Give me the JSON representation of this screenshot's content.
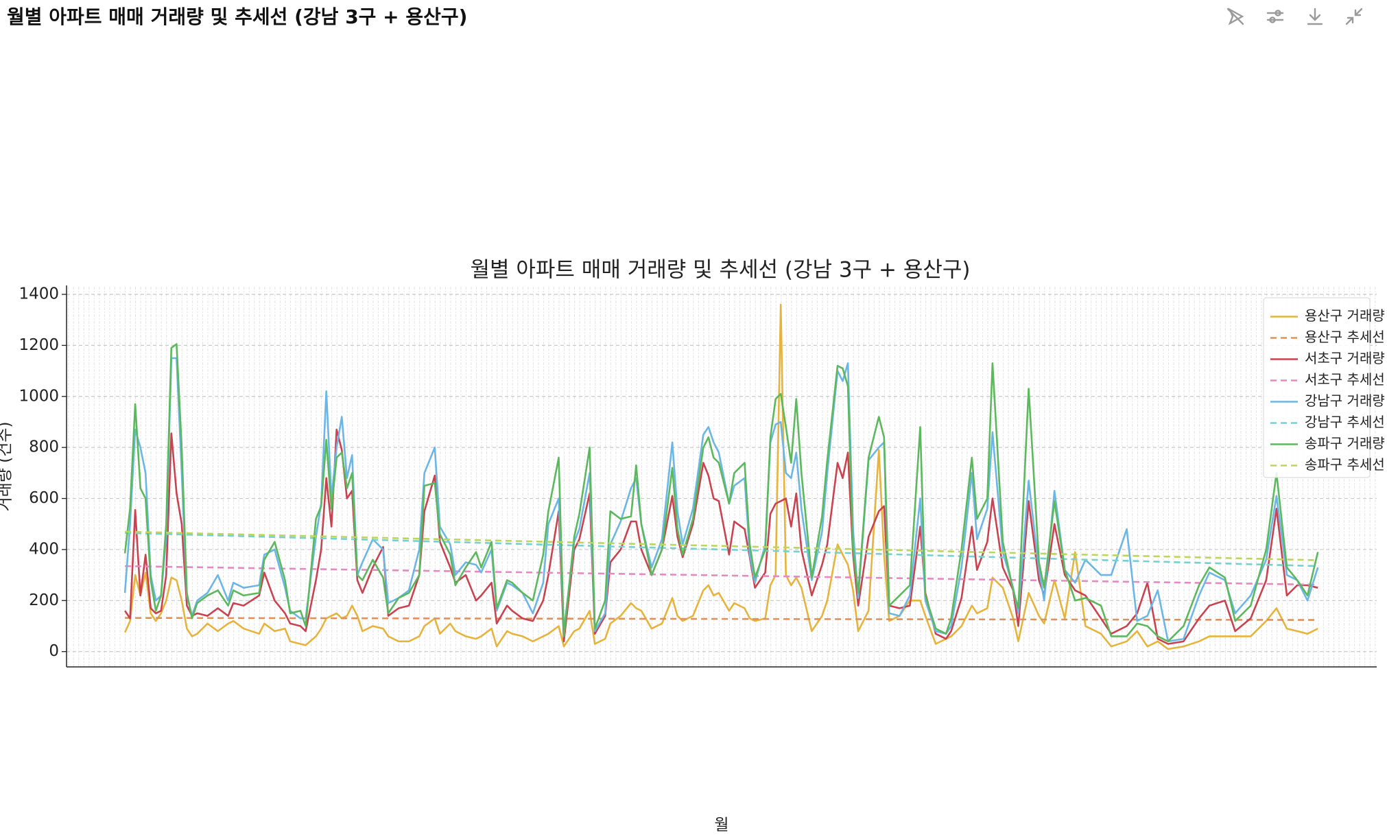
{
  "header": {
    "title": "월별 아파트 매매 거래량 및 추세선 (강남 3구 + 용산구)"
  },
  "chart_data": {
    "type": "line",
    "title": "월별 아파트 매매 거래량 및 추세선 (강남 3구 + 용산구)",
    "x_label": "월",
    "y_label": "거래량 (건수)",
    "xlim": [
      -11.3,
      242.4
    ],
    "ylim": [
      -60,
      1435
    ],
    "yticks": [
      0,
      200,
      400,
      600,
      800,
      1000,
      1200,
      1400
    ],
    "grid": true,
    "legend": "upper right",
    "x": [
      0,
      1,
      2,
      3,
      4,
      5,
      6,
      7,
      8,
      9,
      10,
      11,
      12,
      13,
      14,
      16,
      18,
      20,
      21,
      23,
      26,
      27,
      29,
      31,
      32,
      34,
      35,
      37,
      38,
      39,
      40,
      41,
      42,
      43,
      44,
      45,
      46,
      48,
      50,
      51,
      53,
      55,
      57,
      58,
      60,
      61,
      63,
      64,
      66,
      68,
      69,
      71,
      72,
      74,
      75,
      77,
      79,
      81,
      82,
      84,
      85,
      87,
      88,
      90,
      91,
      93,
      94,
      96,
      98,
      99,
      100,
      102,
      104,
      106,
      107,
      108,
      110,
      112,
      113,
      114,
      115,
      117,
      118,
      120,
      121,
      122,
      124,
      125,
      126,
      127,
      128,
      129,
      130,
      131,
      133,
      135,
      136,
      138,
      139,
      140,
      141,
      142,
      144,
      146,
      147,
      148,
      150,
      152,
      154,
      155,
      157,
      159,
      160,
      162,
      164,
      165,
      167,
      168,
      170,
      172,
      173,
      175,
      177,
      178,
      180,
      182,
      184,
      186,
      189,
      191,
      194,
      196,
      198,
      200,
      202,
      205,
      208,
      210,
      213,
      215,
      218,
      221,
      223,
      225,
      227,
      229,
      231
    ],
    "series": [
      {
        "name": "용산구 거래량",
        "color": "#e6b43c",
        "style": "solid",
        "values": [
          75,
          120,
          300,
          220,
          310,
          150,
          120,
          150,
          200,
          290,
          280,
          200,
          90,
          60,
          70,
          110,
          80,
          110,
          120,
          90,
          70,
          110,
          80,
          90,
          40,
          30,
          25,
          60,
          90,
          130,
          140,
          150,
          130,
          140,
          180,
          140,
          80,
          100,
          90,
          60,
          40,
          40,
          60,
          100,
          130,
          70,
          110,
          80,
          60,
          50,
          60,
          90,
          20,
          80,
          70,
          60,
          40,
          60,
          70,
          100,
          20,
          80,
          90,
          160,
          30,
          50,
          110,
          140,
          190,
          170,
          160,
          90,
          110,
          210,
          140,
          120,
          140,
          240,
          260,
          220,
          230,
          160,
          190,
          170,
          130,
          120,
          130,
          260,
          300,
          1360,
          300,
          260,
          290,
          250,
          80,
          140,
          200,
          420,
          380,
          340,
          240,
          80,
          160,
          790,
          380,
          120,
          140,
          200,
          200,
          140,
          30,
          50,
          60,
          100,
          180,
          150,
          170,
          290,
          250,
          130,
          40,
          230,
          140,
          110,
          280,
          130,
          390,
          100,
          70,
          20,
          40,
          80,
          20,
          40,
          10,
          20,
          40,
          60,
          60,
          60,
          60,
          120,
          170,
          90,
          80,
          70,
          90
        ]
      },
      {
        "name": "용산구 추세선",
        "color": "#e0915a",
        "style": "dashed",
        "x": [
          0,
          231
        ],
        "values": [
          132,
          124
        ]
      },
      {
        "name": "서초구 거래량",
        "color": "#c9424f",
        "style": "solid",
        "values": [
          160,
          130,
          555,
          220,
          380,
          170,
          150,
          160,
          300,
          855,
          620,
          500,
          180,
          140,
          150,
          140,
          170,
          140,
          190,
          180,
          220,
          310,
          200,
          150,
          110,
          100,
          80,
          280,
          400,
          680,
          490,
          870,
          790,
          600,
          630,
          280,
          230,
          330,
          410,
          140,
          170,
          180,
          300,
          550,
          690,
          430,
          330,
          270,
          300,
          200,
          220,
          270,
          110,
          180,
          160,
          130,
          120,
          200,
          300,
          550,
          40,
          400,
          440,
          620,
          70,
          140,
          350,
          400,
          510,
          510,
          400,
          300,
          400,
          610,
          450,
          370,
          500,
          740,
          690,
          600,
          590,
          380,
          510,
          480,
          370,
          250,
          310,
          540,
          580,
          590,
          600,
          490,
          620,
          400,
          220,
          340,
          420,
          740,
          680,
          780,
          380,
          180,
          450,
          550,
          570,
          180,
          170,
          180,
          490,
          230,
          70,
          50,
          80,
          210,
          490,
          320,
          430,
          600,
          330,
          240,
          100,
          590,
          280,
          220,
          500,
          300,
          240,
          220,
          130,
          70,
          100,
          150,
          270,
          50,
          30,
          40,
          130,
          180,
          200,
          80,
          130,
          280,
          560,
          220,
          260,
          260,
          250
        ]
      },
      {
        "name": "서초구 추세선",
        "color": "#e48ac0",
        "style": "dashed",
        "x": [
          0,
          231
        ],
        "values": [
          335,
          262
        ]
      },
      {
        "name": "강남구 거래량",
        "color": "#6cb6e6",
        "style": "solid",
        "values": [
          230,
          500,
          870,
          800,
          700,
          300,
          200,
          220,
          450,
          1150,
          1150,
          700,
          220,
          140,
          200,
          230,
          300,
          200,
          270,
          250,
          260,
          380,
          400,
          250,
          160,
          130,
          130,
          450,
          580,
          1020,
          600,
          800,
          920,
          680,
          770,
          300,
          350,
          440,
          400,
          190,
          210,
          240,
          400,
          700,
          800,
          490,
          420,
          300,
          350,
          340,
          310,
          400,
          160,
          270,
          260,
          230,
          150,
          270,
          500,
          600,
          80,
          430,
          480,
          700,
          80,
          150,
          420,
          510,
          640,
          680,
          500,
          330,
          440,
          820,
          550,
          420,
          560,
          850,
          880,
          820,
          780,
          580,
          650,
          680,
          380,
          270,
          420,
          820,
          890,
          900,
          700,
          680,
          780,
          560,
          280,
          470,
          700,
          1100,
          1060,
          1130,
          480,
          210,
          750,
          800,
          820,
          150,
          140,
          220,
          600,
          200,
          80,
          70,
          100,
          330,
          700,
          440,
          560,
          860,
          390,
          250,
          150,
          670,
          320,
          200,
          630,
          320,
          270,
          360,
          300,
          300,
          480,
          120,
          140,
          240,
          40,
          50,
          220,
          310,
          280,
          150,
          220,
          360,
          610,
          300,
          280,
          200,
          330
        ]
      },
      {
        "name": "강남구 추세선",
        "color": "#76d0cf",
        "style": "dashed",
        "x": [
          0,
          231
        ],
        "values": [
          465,
          335
        ]
      },
      {
        "name": "송파구 거래량",
        "color": "#5cb85c",
        "style": "solid",
        "values": [
          385,
          560,
          970,
          640,
          600,
          280,
          160,
          220,
          500,
          1190,
          1205,
          800,
          230,
          130,
          190,
          220,
          240,
          180,
          240,
          220,
          230,
          360,
          430,
          280,
          150,
          160,
          100,
          520,
          570,
          830,
          560,
          760,
          780,
          640,
          700,
          300,
          280,
          360,
          290,
          150,
          210,
          230,
          300,
          650,
          660,
          460,
          380,
          260,
          330,
          390,
          330,
          430,
          170,
          280,
          270,
          230,
          200,
          380,
          550,
          760,
          60,
          450,
          540,
          800,
          90,
          200,
          550,
          520,
          530,
          730,
          500,
          300,
          400,
          720,
          480,
          380,
          520,
          800,
          840,
          760,
          740,
          580,
          700,
          740,
          420,
          290,
          400,
          840,
          990,
          1010,
          880,
          740,
          990,
          700,
          290,
          530,
          750,
          1120,
          1110,
          1040,
          400,
          230,
          760,
          920,
          840,
          180,
          220,
          260,
          880,
          220,
          90,
          70,
          130,
          400,
          760,
          520,
          600,
          1130,
          430,
          240,
          170,
          1030,
          350,
          250,
          590,
          320,
          200,
          210,
          180,
          60,
          60,
          110,
          100,
          60,
          40,
          100,
          260,
          330,
          290,
          120,
          180,
          400,
          700,
          330,
          280,
          220,
          390
        ]
      },
      {
        "name": "송파구 추세선",
        "color": "#bcd65c",
        "style": "dashed",
        "x": [
          0,
          231
        ],
        "values": [
          470,
          358
        ]
      }
    ]
  }
}
